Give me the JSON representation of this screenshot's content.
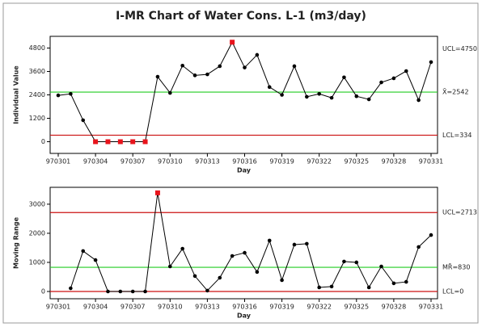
{
  "chart_data": [
    {
      "type": "line",
      "title": "I-MR Chart of Water Cons. L-1 (m3/day)",
      "ylabel": "Individual Value",
      "xlabel": "Day",
      "categories": [
        "970301",
        null,
        null,
        "970304",
        null,
        null,
        "970307",
        null,
        null,
        "970310",
        null,
        null,
        "970313",
        null,
        null,
        "970316",
        null,
        null,
        "970319",
        null,
        null,
        "970322",
        null,
        null,
        "970325",
        null,
        null,
        "970328",
        null,
        null,
        "970331"
      ],
      "series": [
        {
          "name": "Individual Value",
          "color": "#000000",
          "values": [
            2375,
            2450,
            1100,
            0,
            0,
            0,
            0,
            0,
            3330,
            2500,
            3900,
            3400,
            3450,
            3870,
            5100,
            3800,
            4450,
            2800,
            2400,
            3870,
            2300,
            2450,
            2250,
            3300,
            2330,
            2170,
            3040,
            3250,
            3620,
            2130,
            4080
          ]
        }
      ],
      "limits": [
        {
          "value": 4750,
          "label": "UCL=4750"
        },
        {
          "value": 2542,
          "label": "X̄=2542",
          "color": "#22cc22"
        },
        {
          "value": 334,
          "label": "LCL=334",
          "color": "#cc1111"
        }
      ],
      "alarm_color": "#e8141c",
      "ylim": [
        -600,
        5400
      ],
      "yticks": [
        0,
        1200,
        2400,
        3600,
        4800
      ]
    },
    {
      "type": "line",
      "ylabel": "Moving Range",
      "xlabel": "Day",
      "categories": [
        "970301",
        null,
        null,
        "970304",
        null,
        null,
        "970307",
        null,
        null,
        "970310",
        null,
        null,
        "970313",
        null,
        null,
        "970316",
        null,
        null,
        "970319",
        null,
        null,
        "970322",
        null,
        null,
        "970325",
        null,
        null,
        "970328",
        null,
        null,
        "970331"
      ],
      "series": [
        {
          "name": "Moving Range",
          "color": "#000000",
          "values": [
            null,
            110,
            1390,
            1080,
            0,
            0,
            0,
            0,
            3390,
            860,
            1470,
            530,
            30,
            470,
            1220,
            1330,
            670,
            1750,
            390,
            1610,
            1640,
            140,
            170,
            1030,
            1000,
            140,
            860,
            280,
            330,
            1530,
            1940
          ]
        }
      ],
      "limits": [
        {
          "value": 2713,
          "label": "UCL=2713",
          "color": "#cc1111"
        },
        {
          "value": 830,
          "label": "MR̄=830",
          "color": "#22cc22"
        },
        {
          "value": 0,
          "label": "LCL=0",
          "color": "#cc1111"
        }
      ],
      "alarm_color": "#e8141c",
      "ylim": [
        -250,
        3580
      ],
      "yticks": [
        0,
        1000,
        2000,
        3000
      ]
    }
  ]
}
